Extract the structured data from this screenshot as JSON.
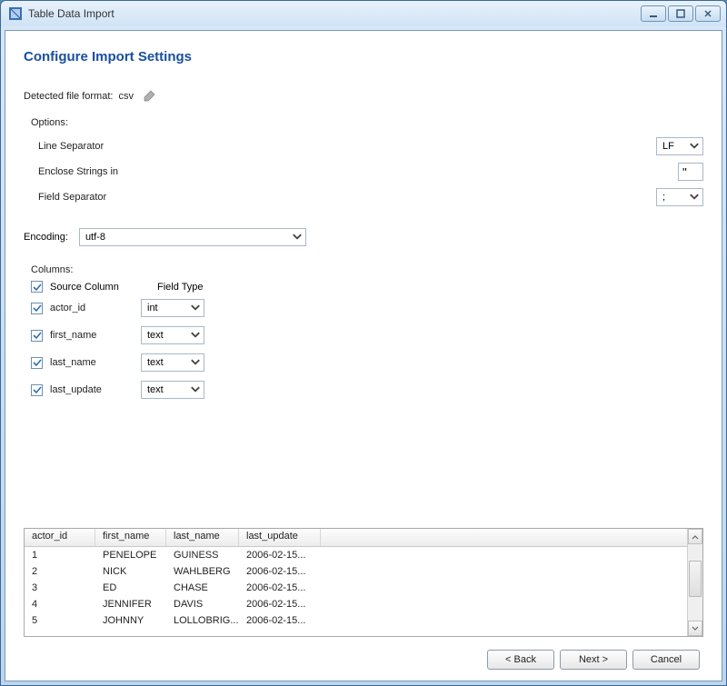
{
  "window": {
    "title": "Table Data Import"
  },
  "heading": "Configure Import Settings",
  "detected": {
    "label_prefix": "Detected file format: ",
    "format": "csv"
  },
  "options": {
    "group_label": "Options:",
    "line_separator": {
      "label": "Line Separator",
      "value": "LF"
    },
    "enclose_strings": {
      "label": "Enclose Strings in",
      "value": "\""
    },
    "field_separator": {
      "label": "Field Separator",
      "value": ";"
    }
  },
  "encoding": {
    "label": "Encoding:",
    "value": "utf-8"
  },
  "columns": {
    "group_label": "Columns:",
    "header_source": "Source Column",
    "header_type": "Field Type",
    "rows": [
      {
        "checked": true,
        "name": "actor_id",
        "type": "int"
      },
      {
        "checked": true,
        "name": "first_name",
        "type": "text"
      },
      {
        "checked": true,
        "name": "last_name",
        "type": "text"
      },
      {
        "checked": true,
        "name": "last_update",
        "type": "text"
      }
    ]
  },
  "preview": {
    "headers": [
      "actor_id",
      "first_name",
      "last_name",
      "last_update"
    ],
    "rows": [
      [
        "1",
        "PENELOPE",
        "GUINESS",
        "2006-02-15..."
      ],
      [
        "2",
        "NICK",
        "WAHLBERG",
        "2006-02-15..."
      ],
      [
        "3",
        "ED",
        "CHASE",
        "2006-02-15..."
      ],
      [
        "4",
        "JENNIFER",
        "DAVIS",
        "2006-02-15..."
      ],
      [
        "5",
        "JOHNNY",
        "LOLLOBRIG...",
        "2006-02-15..."
      ]
    ]
  },
  "buttons": {
    "back": "< Back",
    "next": "Next >",
    "cancel": "Cancel"
  },
  "colors": {
    "accent": "#1a4fa0",
    "border": "#aab8c8",
    "window_frame": "#bcd6ee"
  }
}
